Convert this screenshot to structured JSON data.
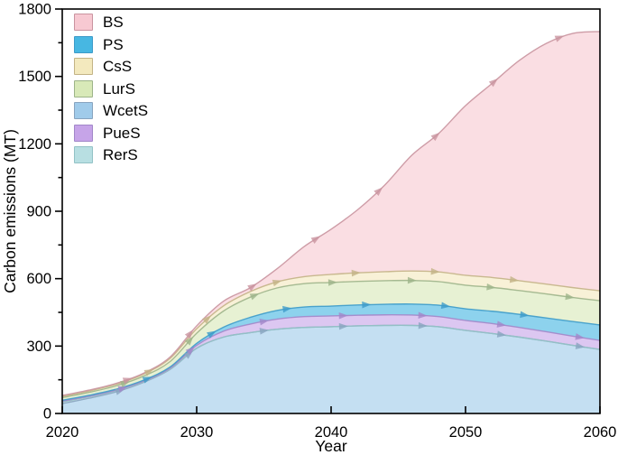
{
  "figure": {
    "background": "#ffffff"
  },
  "chart_data": {
    "type": "area",
    "stacked": true,
    "title": "",
    "xlabel": "Year",
    "ylabel": "Carbon emissions (MT)",
    "xlim": [
      2020,
      2060
    ],
    "ylim": [
      0,
      1800
    ],
    "x_major_ticks": [
      2020,
      2030,
      2040,
      2050,
      2060
    ],
    "y_major_ticks": [
      0,
      300,
      600,
      900,
      1200,
      1500,
      1800
    ],
    "y_minor_step": 150,
    "grid": false,
    "legend_position": "top-left-inside",
    "axis_color": "#000000",
    "x": [
      2020,
      2022,
      2024,
      2026,
      2028,
      2030,
      2032,
      2034,
      2036,
      2038,
      2040,
      2042,
      2044,
      2046,
      2048,
      2050,
      2052,
      2054,
      2056,
      2058,
      2060
    ],
    "stack_order_bottom_to_top": [
      "WcetS",
      "RerS",
      "PueS",
      "PS",
      "LurS",
      "CsS",
      "BS"
    ],
    "series": [
      {
        "name": "BS",
        "fill": "#F7C9D2",
        "line": "#C9939F",
        "arrows": true,
        "values": [
          4,
          4,
          4,
          4,
          6,
          13,
          21,
          17,
          59,
          134,
          201,
          282,
          386,
          515,
          616,
          755,
          865,
          980,
          1071,
          1132,
          1154
        ]
      },
      {
        "name": "PS",
        "fill": "#47B7E2",
        "line": "#3D9BC9",
        "arrows": true,
        "values": [
          4,
          4,
          4,
          4,
          5,
          9,
          18,
          30,
          39,
          43,
          44,
          46,
          47,
          49,
          51,
          52,
          55,
          58,
          61,
          65,
          69
        ]
      },
      {
        "name": "CsS",
        "fill": "#F3E9BE",
        "line": "#C3B386",
        "arrows": true,
        "values": [
          5,
          6,
          7,
          9,
          14,
          20,
          23,
          25,
          27,
          31,
          36,
          38,
          40,
          42,
          43,
          44,
          44,
          44,
          44,
          44,
          44
        ]
      },
      {
        "name": "LurS",
        "fill": "#D8E9B8",
        "line": "#9DB489",
        "arrows": true,
        "values": [
          12,
          13,
          15,
          18,
          24,
          45,
          72,
          90,
          100,
          104,
          105,
          105,
          105,
          105,
          105,
          105,
          106,
          106,
          107,
          107,
          108
        ]
      },
      {
        "name": "WcetS",
        "fill": "#A0CBEA",
        "line": "#88A4BF",
        "arrows": true,
        "values": [
          44,
          68,
          96,
          137,
          195,
          290,
          340,
          360,
          375,
          383,
          386,
          390,
          392,
          392,
          386,
          370,
          356,
          340,
          322,
          303,
          285
        ]
      },
      {
        "name": "PueS",
        "fill": "#C6A4E8",
        "line": "#A287C9",
        "arrows": true,
        "values": [
          4,
          3,
          3,
          3,
          4,
          12,
          26,
          38,
          45,
          48,
          48,
          47,
          47,
          46,
          45,
          44,
          44,
          43,
          42,
          41,
          40
        ]
      },
      {
        "name": "RerS",
        "fill": "#B8DFE2",
        "line": "#93C2C6",
        "arrows": false,
        "values": [
          7,
          6,
          5,
          3,
          2,
          1,
          0,
          0,
          0,
          0,
          0,
          0,
          0,
          0,
          0,
          0,
          0,
          0,
          0,
          0,
          0
        ]
      }
    ]
  }
}
